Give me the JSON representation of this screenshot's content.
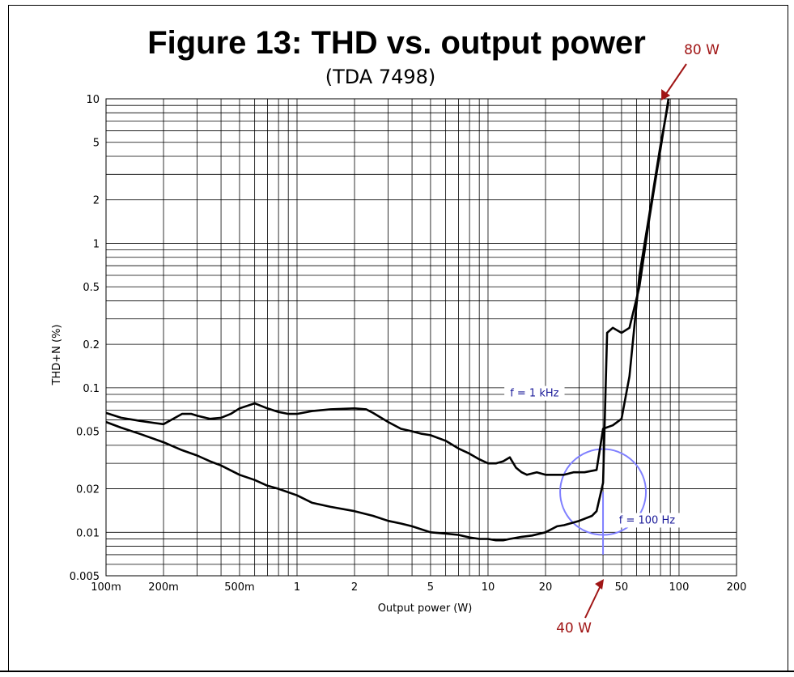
{
  "chart_data": {
    "type": "line",
    "title": "Figure 13: THD vs. output power",
    "subtitle": "(TDA 7498)",
    "xlabel": "Output power (W)",
    "ylabel": "THD+N (%)",
    "x_scale": "log",
    "y_scale": "log",
    "xlim": [
      0.1,
      200
    ],
    "ylim": [
      0.005,
      10
    ],
    "grid": true,
    "x_ticks": [
      {
        "value": 0.1,
        "label": "100m"
      },
      {
        "value": 0.2,
        "label": "200m"
      },
      {
        "value": 0.5,
        "label": "500m"
      },
      {
        "value": 1,
        "label": "1"
      },
      {
        "value": 2,
        "label": "2"
      },
      {
        "value": 5,
        "label": "5"
      },
      {
        "value": 10,
        "label": "10"
      },
      {
        "value": 20,
        "label": "20"
      },
      {
        "value": 50,
        "label": "50"
      },
      {
        "value": 100,
        "label": "100"
      },
      {
        "value": 200,
        "label": "200"
      }
    ],
    "y_ticks": [
      {
        "value": 0.005,
        "label": "0.005"
      },
      {
        "value": 0.01,
        "label": "0.01"
      },
      {
        "value": 0.02,
        "label": "0.02"
      },
      {
        "value": 0.05,
        "label": "0.05"
      },
      {
        "value": 0.1,
        "label": "0.1"
      },
      {
        "value": 0.2,
        "label": "0.2"
      },
      {
        "value": 0.5,
        "label": "0.5"
      },
      {
        "value": 1,
        "label": "1"
      },
      {
        "value": 2,
        "label": "2"
      },
      {
        "value": 5,
        "label": "5"
      },
      {
        "value": 10,
        "label": "10"
      }
    ],
    "series": [
      {
        "name": "f = 1 kHz",
        "color": "#000000",
        "x": [
          0.1,
          0.12,
          0.15,
          0.18,
          0.2,
          0.22,
          0.25,
          0.28,
          0.3,
          0.35,
          0.4,
          0.45,
          0.5,
          0.6,
          0.7,
          0.8,
          0.9,
          1.0,
          1.2,
          1.5,
          2.0,
          2.3,
          2.5,
          3.0,
          3.5,
          4.0,
          4.5,
          5.0,
          6.0,
          7.0,
          8.0,
          9.0,
          10.0,
          11.0,
          12.0,
          13.0,
          14.0,
          15.0,
          16.0,
          18.0,
          20.0,
          23.0,
          25.0,
          28.0,
          32.0,
          37.0,
          40.0,
          45.0,
          50.0,
          55.0,
          62.0,
          70.0,
          80.0,
          88.0
        ],
        "values": [
          0.067,
          0.062,
          0.059,
          0.057,
          0.056,
          0.06,
          0.066,
          0.066,
          0.064,
          0.061,
          0.062,
          0.066,
          0.072,
          0.078,
          0.072,
          0.068,
          0.066,
          0.066,
          0.069,
          0.071,
          0.072,
          0.071,
          0.067,
          0.058,
          0.052,
          0.05,
          0.048,
          0.047,
          0.043,
          0.038,
          0.035,
          0.032,
          0.03,
          0.03,
          0.031,
          0.033,
          0.028,
          0.026,
          0.025,
          0.026,
          0.025,
          0.025,
          0.025,
          0.026,
          0.026,
          0.027,
          0.052,
          0.055,
          0.061,
          0.12,
          0.6,
          1.6,
          4.8,
          9.5
        ]
      },
      {
        "name": "f = 100 Hz",
        "color": "#000000",
        "x": [
          0.1,
          0.12,
          0.15,
          0.2,
          0.25,
          0.3,
          0.35,
          0.4,
          0.5,
          0.6,
          0.7,
          0.8,
          1.0,
          1.2,
          1.5,
          2.0,
          2.5,
          3.0,
          3.5,
          4.0,
          5.0,
          6.0,
          7.0,
          8.0,
          9.0,
          10.0,
          11.0,
          12.0,
          13.0,
          15.0,
          17.0,
          20.0,
          23.0,
          25.0,
          30.0,
          35.0,
          37.0,
          40.0,
          42.0,
          45.0,
          50.0,
          55.0,
          62.0,
          70.0,
          80.0,
          88.0
        ],
        "values": [
          0.058,
          0.053,
          0.048,
          0.042,
          0.037,
          0.034,
          0.031,
          0.029,
          0.025,
          0.023,
          0.021,
          0.02,
          0.018,
          0.016,
          0.015,
          0.014,
          0.013,
          0.012,
          0.0115,
          0.011,
          0.01,
          0.0098,
          0.0096,
          0.0092,
          0.009,
          0.009,
          0.0088,
          0.0088,
          0.009,
          0.0093,
          0.0095,
          0.01,
          0.011,
          0.0112,
          0.012,
          0.013,
          0.014,
          0.022,
          0.24,
          0.26,
          0.24,
          0.26,
          0.5,
          1.5,
          4.5,
          10.0
        ]
      }
    ],
    "annotations": [
      {
        "text": "f = 1 kHz",
        "x": 17.5,
        "y": 0.087
      },
      {
        "text": "f = 100 Hz",
        "x": 68,
        "y": 0.0115
      }
    ],
    "callouts": [
      {
        "text": "80 W",
        "x": 80
      },
      {
        "text": "40 W",
        "x": 40
      }
    ],
    "highlight": {
      "center_x": 40,
      "center_y": 0.019,
      "color": "#8080ff",
      "marker_x": 40,
      "marker_y_bottom": 0.007
    }
  }
}
